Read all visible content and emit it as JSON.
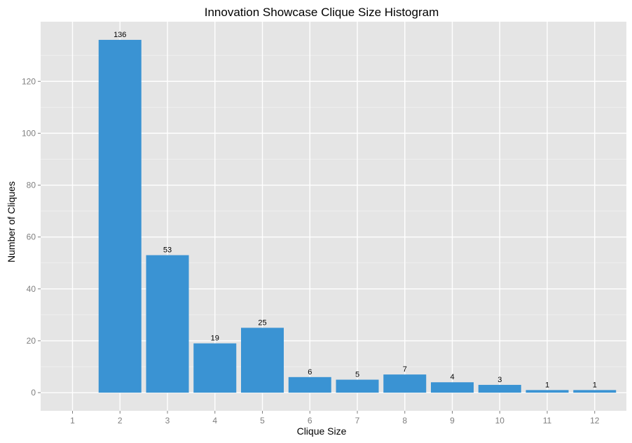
{
  "chart_data": {
    "type": "bar",
    "title": "Innovation Showcase Clique Size Histogram",
    "xlabel": "Clique Size",
    "ylabel": "Number of Cliques",
    "categories": [
      "1",
      "2",
      "3",
      "4",
      "5",
      "6",
      "7",
      "8",
      "9",
      "10",
      "11",
      "12"
    ],
    "values": [
      0,
      136,
      53,
      19,
      25,
      6,
      5,
      7,
      4,
      3,
      1,
      1
    ],
    "data_labels": [
      "",
      "136",
      "53",
      "19",
      "25",
      "6",
      "5",
      "7",
      "4",
      "3",
      "1",
      "1"
    ],
    "yticks": [
      0,
      20,
      40,
      60,
      80,
      100,
      120
    ],
    "ytick_labels": [
      "0",
      "20",
      "40",
      "60",
      "80",
      "100",
      "120"
    ],
    "ylim": [
      -7,
      143
    ],
    "grid": true,
    "legend": "none",
    "colors": {
      "bar": "#3a93d3",
      "panel": "#e5e5e5",
      "grid_major": "#ffffff",
      "grid_minor": "#f2f2f2"
    }
  }
}
